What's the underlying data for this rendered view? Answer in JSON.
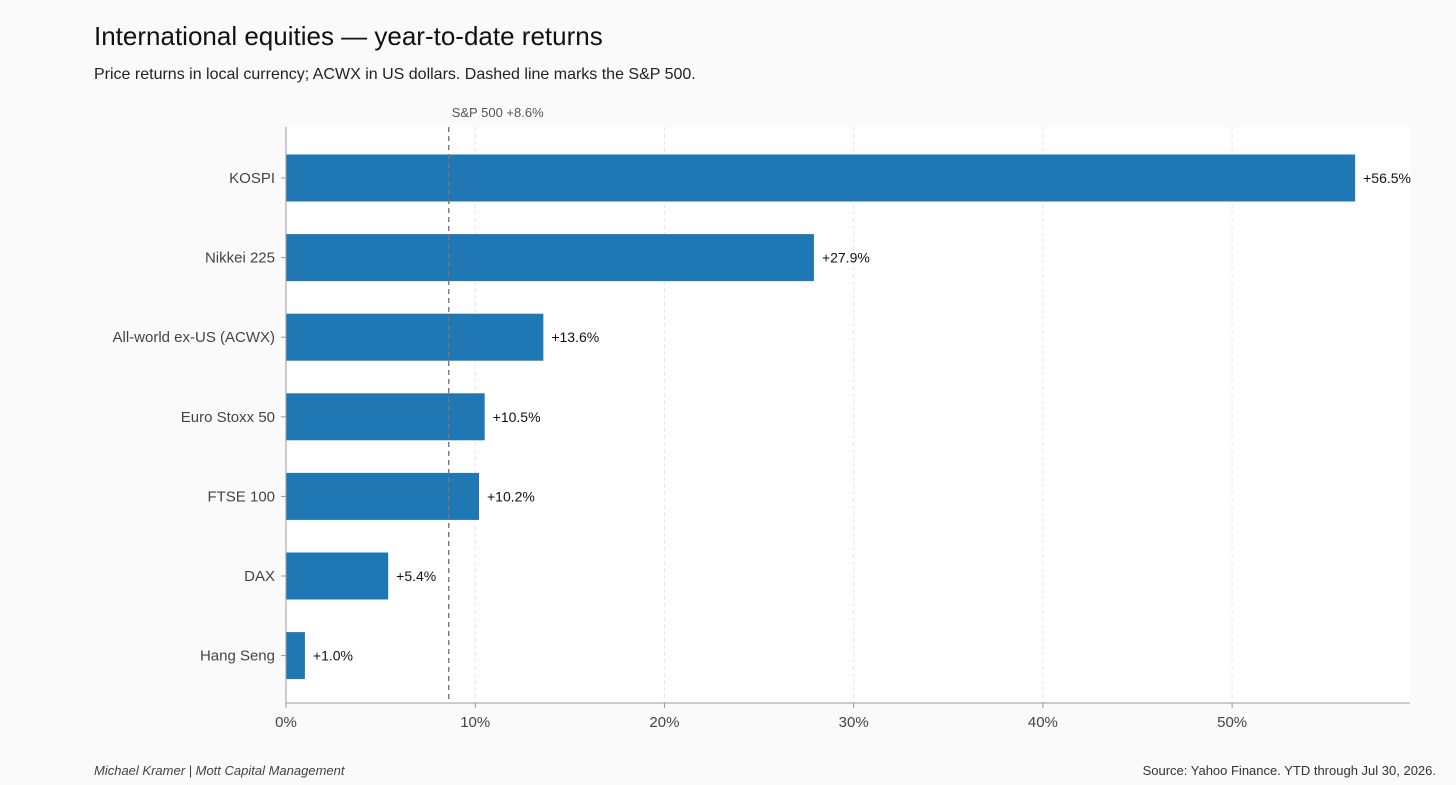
{
  "header": {
    "title": "International equities — year-to-date returns",
    "subtitle": "Price returns in local currency; ACWX in US dollars. Dashed line marks the S&P 500."
  },
  "footer": {
    "author": "Michael Kramer  |  Mott Capital Management",
    "source": "Source: Yahoo Finance. YTD through Jul 30, 2026."
  },
  "chart_data": {
    "type": "bar",
    "orientation": "horizontal",
    "categories": [
      "KOSPI",
      "Nikkei 225",
      "All-world ex-US (ACWX)",
      "Euro Stoxx 50",
      "FTSE 100",
      "DAX",
      "Hang Seng"
    ],
    "values": [
      56.5,
      27.9,
      13.6,
      10.5,
      10.2,
      5.4,
      1.0
    ],
    "data_labels": [
      "+56.5%",
      "+27.9%",
      "+13.6%",
      "+10.5%",
      "+10.2%",
      "+5.4%",
      "+1.0%"
    ],
    "xlim": [
      0,
      59.4
    ],
    "x_ticks": [
      0,
      10,
      20,
      30,
      40,
      50
    ],
    "x_tick_labels": [
      "0%",
      "10%",
      "20%",
      "30%",
      "40%",
      "50%"
    ],
    "grid": "vertical dashed",
    "reference_line": {
      "value": 8.6,
      "label": "S&P 500 +8.6%",
      "style": "dashed"
    },
    "colors": {
      "bar": "#1f77b4",
      "plot_bg": "#ffffff",
      "page_bg": "#fafafa",
      "reference": "#777777"
    }
  }
}
